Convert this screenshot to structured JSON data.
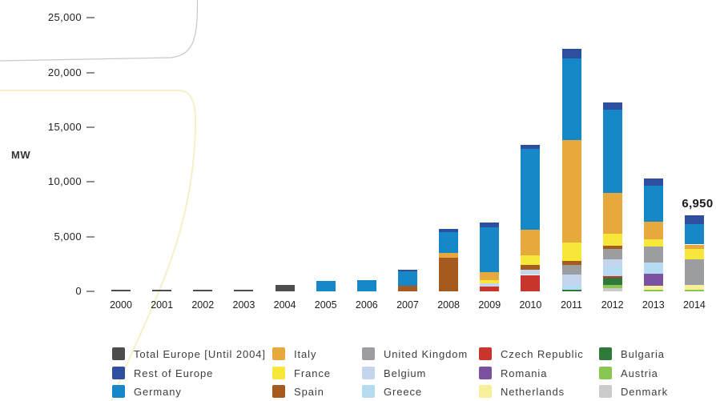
{
  "chart_data": {
    "type": "bar",
    "stacked": true,
    "ylabel": "MW",
    "ylim": [
      0,
      25000
    ],
    "y_ticks": [
      {
        "label": "0",
        "value": 0
      },
      {
        "label": "5,000",
        "value": 5000
      },
      {
        "label": "10,000",
        "value": 10000
      },
      {
        "label": "15,000",
        "value": 15000
      },
      {
        "label": "20,000",
        "value": 20000
      },
      {
        "label": "25,000",
        "value": 25000
      }
    ],
    "categories": [
      "2000",
      "2001",
      "2002",
      "2003",
      "2004",
      "2005",
      "2006",
      "2007",
      "2008",
      "2009",
      "2010",
      "2011",
      "2012",
      "2013",
      "2014"
    ],
    "series": [
      {
        "name": "Total Europe [Until 2004]",
        "color": "#4d4d4f",
        "values": [
          60,
          90,
          120,
          180,
          550,
          0,
          0,
          0,
          0,
          0,
          0,
          0,
          0,
          0,
          0
        ]
      },
      {
        "name": "Rest of Europe",
        "color": "#2d4f9e",
        "values": [
          0,
          0,
          0,
          0,
          0,
          0,
          0,
          150,
          250,
          450,
          350,
          900,
          700,
          650,
          770
        ]
      },
      {
        "name": "Germany",
        "color": "#1688c8",
        "values": [
          0,
          0,
          0,
          0,
          0,
          950,
          1000,
          1350,
          1950,
          4100,
          7400,
          7500,
          7600,
          3300,
          1900
        ]
      },
      {
        "name": "Italy",
        "color": "#e7a93d",
        "values": [
          0,
          0,
          0,
          0,
          0,
          0,
          0,
          0,
          400,
          760,
          2350,
          9300,
          3700,
          1600,
          380
        ]
      },
      {
        "name": "France",
        "color": "#f6e738",
        "values": [
          0,
          0,
          0,
          0,
          0,
          0,
          0,
          0,
          0,
          280,
          900,
          1750,
          1100,
          650,
          950
        ]
      },
      {
        "name": "Spain",
        "color": "#a55a20",
        "values": [
          0,
          0,
          0,
          0,
          0,
          0,
          0,
          500,
          3100,
          0,
          400,
          300,
          300,
          0,
          0
        ]
      },
      {
        "name": "United Kingdom",
        "color": "#9b9da0",
        "values": [
          0,
          0,
          0,
          0,
          0,
          0,
          0,
          0,
          0,
          0,
          0,
          900,
          950,
          1450,
          2400
        ]
      },
      {
        "name": "Belgium",
        "color": "#c5d5ed",
        "values": [
          0,
          0,
          0,
          0,
          0,
          0,
          0,
          0,
          0,
          300,
          500,
          950,
          650,
          0,
          0
        ]
      },
      {
        "name": "Greece",
        "color": "#b4dbf0",
        "values": [
          0,
          0,
          0,
          0,
          0,
          0,
          0,
          0,
          0,
          0,
          0,
          450,
          900,
          1040,
          0
        ]
      },
      {
        "name": "Czech Republic",
        "color": "#c9372c",
        "values": [
          0,
          0,
          0,
          0,
          0,
          0,
          0,
          0,
          0,
          420,
          1500,
          0,
          110,
          0,
          0
        ]
      },
      {
        "name": "Romania",
        "color": "#7b52a0",
        "values": [
          0,
          0,
          0,
          0,
          0,
          0,
          0,
          0,
          0,
          0,
          0,
          0,
          0,
          1100,
          0
        ]
      },
      {
        "name": "Netherlands",
        "color": "#f7ef9a",
        "values": [
          0,
          0,
          0,
          0,
          0,
          0,
          0,
          0,
          0,
          0,
          0,
          0,
          0,
          360,
          400
        ]
      },
      {
        "name": "Bulgaria",
        "color": "#2d7a3a",
        "values": [
          0,
          0,
          0,
          0,
          0,
          0,
          0,
          0,
          0,
          0,
          0,
          150,
          700,
          0,
          0
        ]
      },
      {
        "name": "Austria",
        "color": "#8bc652",
        "values": [
          0,
          0,
          0,
          0,
          0,
          0,
          0,
          0,
          0,
          0,
          0,
          0,
          250,
          150,
          150
        ]
      },
      {
        "name": "Denmark",
        "color": "#c9cbcd",
        "values": [
          0,
          0,
          0,
          0,
          0,
          0,
          0,
          0,
          0,
          0,
          0,
          0,
          320,
          0,
          0
        ]
      }
    ],
    "stack_order": "reverse-legend-order (Denmark at bottom, Rest of Europe on top)",
    "annotation": {
      "text": "6,950",
      "year": "2014"
    },
    "legend_position": "bottom",
    "legend_columns": [
      [
        0,
        1,
        2
      ],
      [
        3,
        4,
        5
      ],
      [
        6,
        7,
        8
      ],
      [
        9,
        10,
        11
      ],
      [
        12,
        13,
        14
      ]
    ],
    "grid": false
  },
  "decoration": {
    "gray_arc_color": "#c9c9ce",
    "yellow_arc_color": "#f6efc9"
  }
}
